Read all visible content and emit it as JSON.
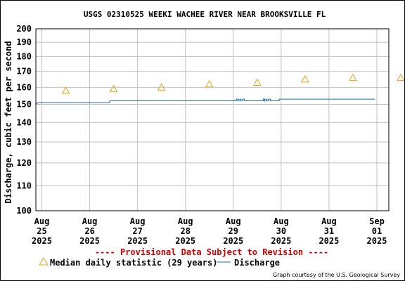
{
  "chart_data": {
    "type": "line",
    "title": "USGS 02310525 WEEKI WACHEE RIVER NEAR BROOKSVILLE FL",
    "ylabel": "Discharge, cubic feet per second",
    "xlabel": "",
    "ylim": [
      100,
      200
    ],
    "y_scale": "log",
    "yticks": [
      100,
      110,
      120,
      130,
      140,
      150,
      160,
      170,
      180,
      190,
      200
    ],
    "xlim": [
      "2025-08-24T21:00",
      "2025-09-01T06:00"
    ],
    "grid": true,
    "x_ticks": [
      {
        "t": "2025-08-25T00:00",
        "line1": "Aug",
        "line2": "25",
        "line3": "2025"
      },
      {
        "t": "2025-08-26T00:00",
        "line1": "Aug",
        "line2": "26",
        "line3": "2025"
      },
      {
        "t": "2025-08-27T00:00",
        "line1": "Aug",
        "line2": "27",
        "line3": "2025"
      },
      {
        "t": "2025-08-28T00:00",
        "line1": "Aug",
        "line2": "28",
        "line3": "2025"
      },
      {
        "t": "2025-08-29T00:00",
        "line1": "Aug",
        "line2": "29",
        "line3": "2025"
      },
      {
        "t": "2025-08-30T00:00",
        "line1": "Aug",
        "line2": "30",
        "line3": "2025"
      },
      {
        "t": "2025-08-31T00:00",
        "line1": "Aug",
        "line2": "31",
        "line3": "2025"
      },
      {
        "t": "2025-09-01T00:00",
        "line1": "Sep",
        "line2": "01",
        "line3": "2025"
      }
    ],
    "series": [
      {
        "name": "Median daily statistic (29 years)",
        "kind": "marker",
        "marker": "triangle",
        "color": "#e8a317",
        "points": [
          {
            "x": "2025-08-25T12:00",
            "y": 158
          },
          {
            "x": "2025-08-26T12:00",
            "y": 159
          },
          {
            "x": "2025-08-27T12:00",
            "y": 160
          },
          {
            "x": "2025-08-28T12:00",
            "y": 162
          },
          {
            "x": "2025-08-29T12:00",
            "y": 163
          },
          {
            "x": "2025-08-30T12:00",
            "y": 165
          },
          {
            "x": "2025-08-31T12:00",
            "y": 166
          },
          {
            "x": "2025-09-01T12:00",
            "y": 166
          }
        ]
      },
      {
        "name": "Discharge",
        "kind": "line",
        "color": "#1b6fa8",
        "points": [
          {
            "x": "2025-08-24T21:00",
            "y": 151
          },
          {
            "x": "2025-08-24T21:10",
            "y": 150
          },
          {
            "x": "2025-08-24T22:00",
            "y": 151
          },
          {
            "x": "2025-08-26T10:00",
            "y": 151
          },
          {
            "x": "2025-08-26T10:05",
            "y": 152
          },
          {
            "x": "2025-08-29T01:30",
            "y": 152
          },
          {
            "x": "2025-08-29T01:35",
            "y": 153
          },
          {
            "x": "2025-08-29T02:30",
            "y": 152
          },
          {
            "x": "2025-08-29T02:35",
            "y": 153
          },
          {
            "x": "2025-08-29T03:30",
            "y": 152
          },
          {
            "x": "2025-08-29T03:35",
            "y": 153
          },
          {
            "x": "2025-08-29T04:30",
            "y": 152
          },
          {
            "x": "2025-08-29T04:35",
            "y": 153
          },
          {
            "x": "2025-08-29T05:30",
            "y": 153
          },
          {
            "x": "2025-08-29T05:35",
            "y": 152
          },
          {
            "x": "2025-08-29T15:00",
            "y": 152
          },
          {
            "x": "2025-08-29T15:05",
            "y": 153
          },
          {
            "x": "2025-08-29T15:40",
            "y": 152
          },
          {
            "x": "2025-08-29T15:45",
            "y": 153
          },
          {
            "x": "2025-08-29T16:40",
            "y": 152
          },
          {
            "x": "2025-08-29T16:45",
            "y": 153
          },
          {
            "x": "2025-08-29T17:40",
            "y": 152
          },
          {
            "x": "2025-08-29T17:45",
            "y": 153
          },
          {
            "x": "2025-08-29T18:30",
            "y": 153
          },
          {
            "x": "2025-08-29T18:35",
            "y": 152
          },
          {
            "x": "2025-08-29T23:00",
            "y": 152
          },
          {
            "x": "2025-08-29T23:05",
            "y": 153
          },
          {
            "x": "2025-08-31T23:00",
            "y": 153
          }
        ]
      }
    ]
  },
  "provisional_notice": "---- Provisional Data Subject to Revision ----",
  "legend": {
    "median_label": "Median daily statistic (29 years)",
    "discharge_label": "Discharge"
  },
  "credit": "Graph courtesy of the U.S. Geological Survey",
  "colors": {
    "grid": "#c0c0c0",
    "median": "#e8a317",
    "discharge": "#1b6fa8",
    "provisional": "#cc0000"
  }
}
